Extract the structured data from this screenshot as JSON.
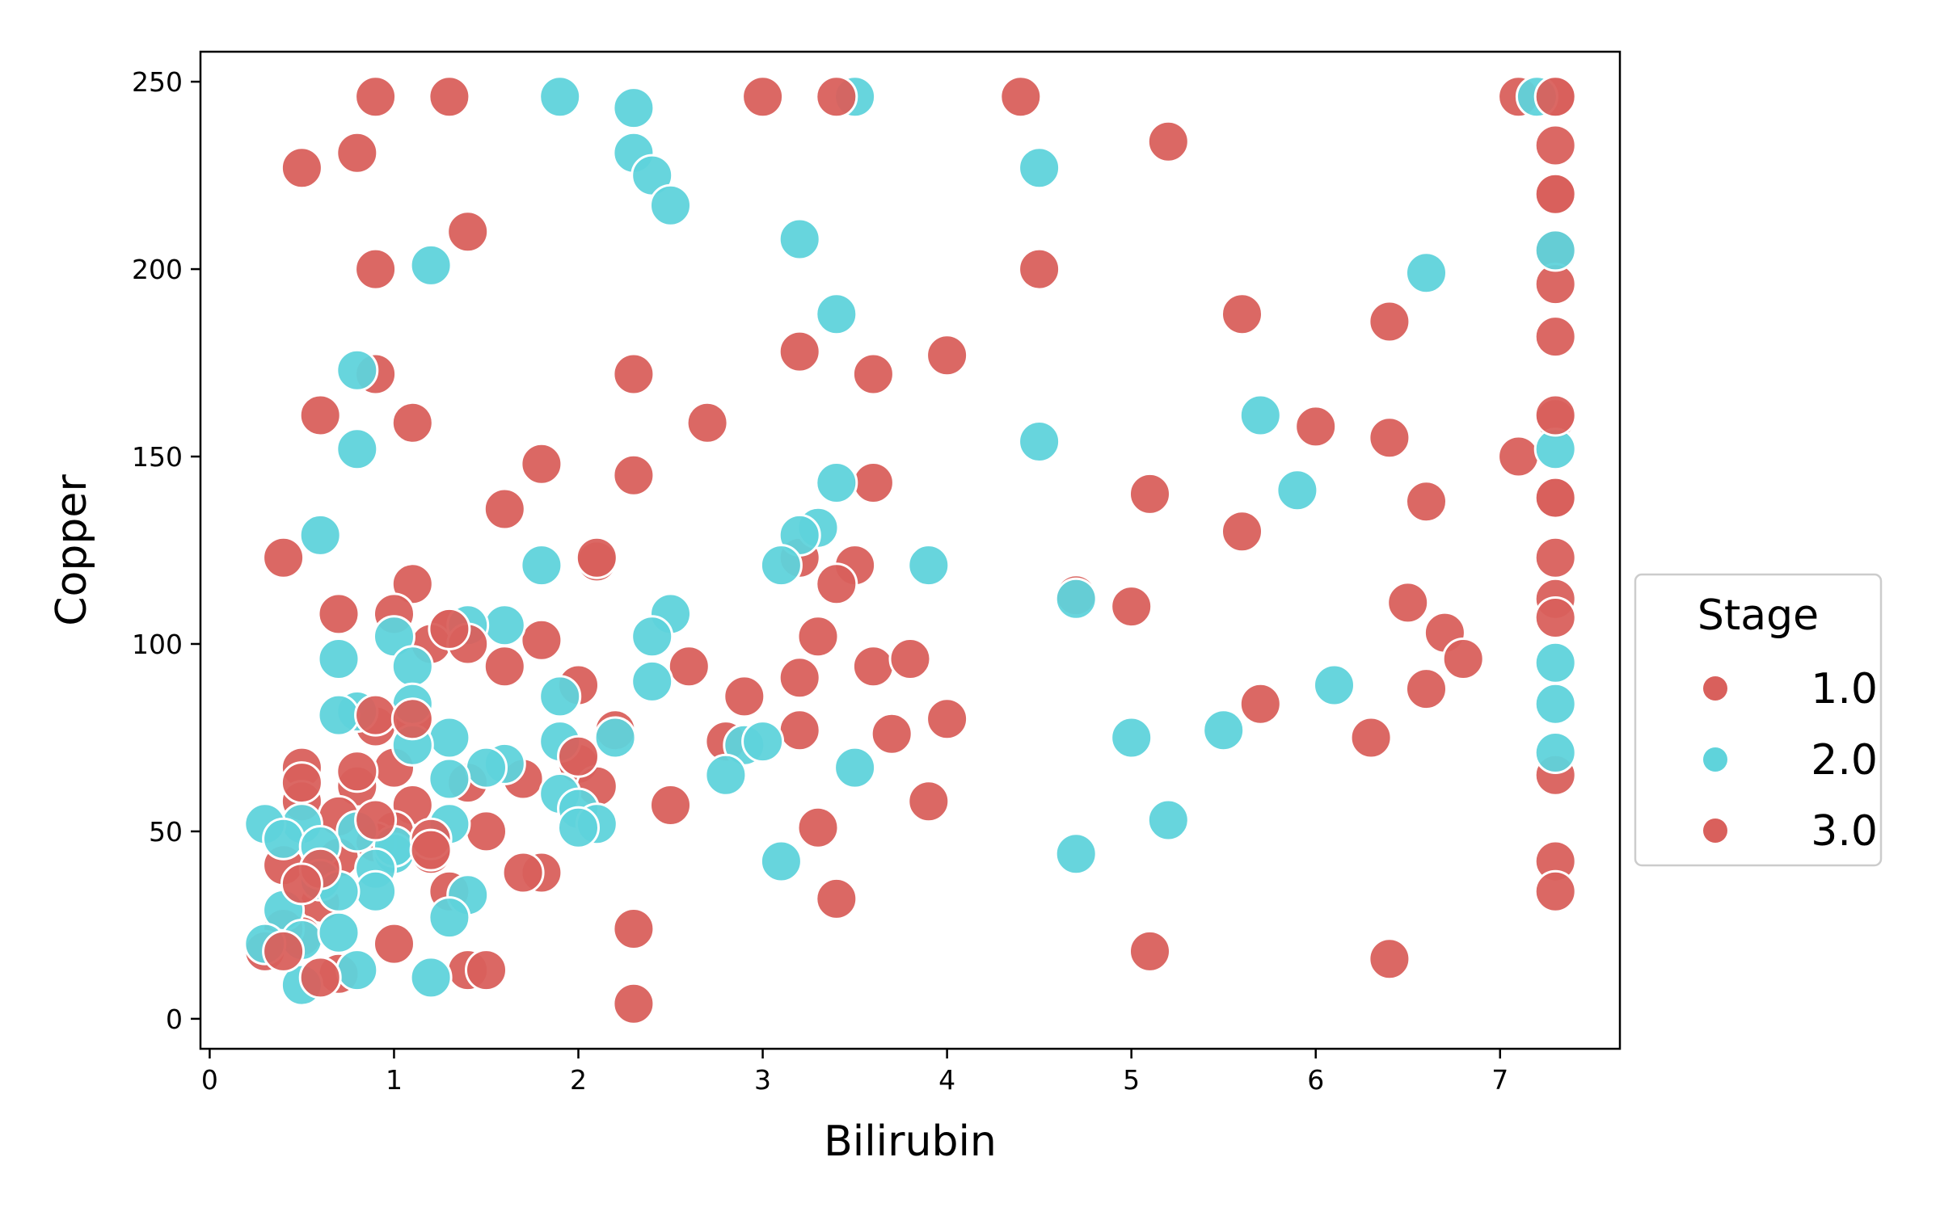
{
  "chart_data": {
    "type": "scatter",
    "title": "",
    "xlabel": "Bilirubin",
    "ylabel": "Copper",
    "xlim": [
      -0.05,
      7.65
    ],
    "ylim": [
      -8,
      258
    ],
    "xticks": [
      0,
      1,
      2,
      3,
      4,
      5,
      6,
      7
    ],
    "yticks": [
      0,
      50,
      100,
      150,
      200,
      250
    ],
    "grid": false,
    "legend": {
      "title": "Stage",
      "placement": "outside-right"
    },
    "series": [
      {
        "name": "1.0",
        "color": "#d9605c",
        "points": [
          [
            0.9,
            246
          ],
          [
            1.3,
            246
          ],
          [
            3.0,
            246
          ],
          [
            4.4,
            246
          ],
          [
            7.1,
            246
          ],
          [
            7.3,
            246
          ],
          [
            0.5,
            227
          ],
          [
            0.8,
            231
          ],
          [
            5.2,
            234
          ],
          [
            7.3,
            233
          ],
          [
            1.4,
            210
          ],
          [
            0.9,
            200
          ],
          [
            4.5,
            200
          ],
          [
            7.3,
            220
          ],
          [
            7.3,
            205
          ],
          [
            7.3,
            196
          ],
          [
            5.6,
            188
          ],
          [
            6.4,
            186
          ],
          [
            7.3,
            182
          ],
          [
            0.9,
            172
          ],
          [
            2.3,
            172
          ],
          [
            3.6,
            172
          ],
          [
            4.0,
            177
          ],
          [
            3.2,
            178
          ],
          [
            0.6,
            161
          ],
          [
            1.1,
            159
          ],
          [
            2.7,
            159
          ],
          [
            6.0,
            158
          ],
          [
            6.4,
            155
          ],
          [
            7.1,
            150
          ],
          [
            7.3,
            160
          ],
          [
            1.8,
            148
          ],
          [
            2.3,
            145
          ],
          [
            3.6,
            143
          ],
          [
            5.1,
            140
          ],
          [
            6.6,
            138
          ],
          [
            7.3,
            139
          ],
          [
            1.6,
            136
          ],
          [
            5.6,
            130
          ],
          [
            0.4,
            123
          ],
          [
            2.1,
            122
          ],
          [
            3.2,
            123
          ],
          [
            3.5,
            121
          ],
          [
            7.3,
            123
          ],
          [
            1.1,
            116
          ],
          [
            3.4,
            116
          ],
          [
            4.7,
            113
          ],
          [
            5.0,
            110
          ],
          [
            6.5,
            111
          ],
          [
            7.3,
            112
          ],
          [
            7.3,
            107
          ],
          [
            0.7,
            108
          ],
          [
            1.0,
            108
          ],
          [
            1.3,
            104
          ],
          [
            1.2,
            100
          ],
          [
            1.8,
            101
          ],
          [
            3.3,
            102
          ],
          [
            6.7,
            103
          ],
          [
            6.8,
            96
          ],
          [
            1.6,
            94
          ],
          [
            2.6,
            94
          ],
          [
            3.6,
            94
          ],
          [
            3.8,
            96
          ],
          [
            3.2,
            91
          ],
          [
            2.0,
            89
          ],
          [
            2.9,
            86
          ],
          [
            6.6,
            88
          ],
          [
            5.7,
            84
          ],
          [
            1.1,
            80
          ],
          [
            0.9,
            78
          ],
          [
            2.2,
            77
          ],
          [
            3.2,
            77
          ],
          [
            4.0,
            80
          ],
          [
            3.7,
            76
          ],
          [
            2.8,
            74
          ],
          [
            6.3,
            75
          ],
          [
            0.5,
            67
          ],
          [
            1.0,
            67
          ],
          [
            1.7,
            64
          ],
          [
            2.0,
            68
          ],
          [
            7.3,
            65
          ],
          [
            0.8,
            62
          ],
          [
            1.4,
            63
          ],
          [
            2.1,
            62
          ],
          [
            0.5,
            58
          ],
          [
            1.1,
            57
          ],
          [
            3.9,
            58
          ],
          [
            2.5,
            57
          ],
          [
            0.7,
            54
          ],
          [
            1.0,
            50
          ],
          [
            1.5,
            50
          ],
          [
            3.3,
            51
          ],
          [
            0.9,
            47
          ],
          [
            1.2,
            44
          ],
          [
            0.7,
            43
          ],
          [
            0.4,
            41
          ],
          [
            1.8,
            39
          ],
          [
            1.7,
            39
          ],
          [
            7.3,
            42
          ],
          [
            7.3,
            34
          ],
          [
            0.6,
            31
          ],
          [
            1.3,
            34
          ],
          [
            3.4,
            32
          ],
          [
            0.5,
            22
          ],
          [
            0.4,
            24
          ],
          [
            1.0,
            20
          ],
          [
            2.3,
            24
          ],
          [
            5.1,
            18
          ],
          [
            6.4,
            16
          ],
          [
            0.7,
            12
          ],
          [
            1.4,
            13
          ],
          [
            1.5,
            13
          ],
          [
            2.3,
            4
          ],
          [
            0.3,
            18
          ]
        ]
      },
      {
        "name": "2.0",
        "color": "#5fd3db",
        "points": [
          [
            1.9,
            246
          ],
          [
            3.5,
            246
          ],
          [
            7.2,
            246
          ],
          [
            2.3,
            243
          ],
          [
            2.3,
            231
          ],
          [
            2.4,
            225
          ],
          [
            2.5,
            217
          ],
          [
            4.5,
            227
          ],
          [
            1.2,
            201
          ],
          [
            3.2,
            208
          ],
          [
            6.6,
            199
          ],
          [
            7.3,
            205
          ],
          [
            3.4,
            188
          ],
          [
            0.8,
            173
          ],
          [
            0.8,
            152
          ],
          [
            4.5,
            154
          ],
          [
            5.7,
            161
          ],
          [
            7.3,
            152
          ],
          [
            5.9,
            141
          ],
          [
            3.4,
            143
          ],
          [
            3.3,
            131
          ],
          [
            3.2,
            129
          ],
          [
            3.1,
            121
          ],
          [
            3.9,
            121
          ],
          [
            0.6,
            129
          ],
          [
            1.8,
            121
          ],
          [
            4.7,
            112
          ],
          [
            2.5,
            108
          ],
          [
            2.4,
            102
          ],
          [
            1.6,
            105
          ],
          [
            1.4,
            105
          ],
          [
            1.0,
            102
          ],
          [
            1.1,
            94
          ],
          [
            0.7,
            96
          ],
          [
            2.4,
            90
          ],
          [
            7.3,
            95
          ],
          [
            1.9,
            86
          ],
          [
            6.1,
            89
          ],
          [
            0.8,
            82
          ],
          [
            0.7,
            81
          ],
          [
            1.1,
            84
          ],
          [
            7.3,
            84
          ],
          [
            1.3,
            75
          ],
          [
            1.9,
            74
          ],
          [
            2.2,
            75
          ],
          [
            2.9,
            73
          ],
          [
            3.0,
            74
          ],
          [
            5.0,
            75
          ],
          [
            5.5,
            77
          ],
          [
            1.1,
            73
          ],
          [
            7.3,
            71
          ],
          [
            1.6,
            68
          ],
          [
            1.5,
            67
          ],
          [
            1.3,
            64
          ],
          [
            2.8,
            65
          ],
          [
            3.5,
            67
          ],
          [
            1.9,
            60
          ],
          [
            2.0,
            56
          ],
          [
            0.5,
            52
          ],
          [
            0.3,
            52
          ],
          [
            2.1,
            52
          ],
          [
            2.0,
            51
          ],
          [
            1.3,
            52
          ],
          [
            0.8,
            50
          ],
          [
            0.4,
            48
          ],
          [
            0.6,
            46
          ],
          [
            1.0,
            44
          ],
          [
            1.0,
            46
          ],
          [
            0.9,
            40
          ],
          [
            0.6,
            37
          ],
          [
            1.4,
            33
          ],
          [
            1.3,
            27
          ],
          [
            3.1,
            42
          ],
          [
            4.7,
            44
          ],
          [
            5.2,
            53
          ],
          [
            0.4,
            29
          ],
          [
            0.9,
            34
          ],
          [
            0.7,
            34
          ],
          [
            0.5,
            21
          ],
          [
            0.3,
            20
          ],
          [
            0.7,
            23
          ],
          [
            0.5,
            9
          ],
          [
            0.8,
            13
          ],
          [
            1.2,
            11
          ]
        ]
      },
      {
        "name": "3.0",
        "color": "#d9605c",
        "points": [
          [
            3.4,
            246
          ],
          [
            7.3,
            246
          ],
          [
            7.3,
            220
          ],
          [
            7.3,
            139
          ],
          [
            7.3,
            161
          ],
          [
            2.1,
            123
          ],
          [
            1.4,
            100
          ],
          [
            0.9,
            81
          ],
          [
            1.1,
            80
          ],
          [
            2.0,
            70
          ],
          [
            0.8,
            66
          ],
          [
            0.5,
            63
          ],
          [
            0.9,
            53
          ],
          [
            1.2,
            48
          ],
          [
            0.6,
            40
          ],
          [
            0.5,
            36
          ],
          [
            0.4,
            18
          ],
          [
            0.6,
            11
          ],
          [
            1.2,
            45
          ],
          [
            1.3,
            104
          ]
        ]
      }
    ]
  }
}
